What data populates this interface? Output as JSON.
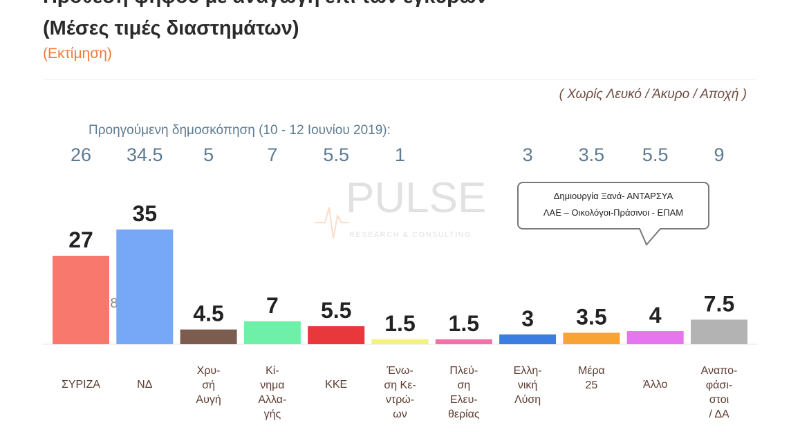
{
  "chart_data": {
    "type": "bar",
    "title": "Πρόθεση ψήφου με αναγωγή επί των εγκύρων",
    "subtitle": "(Μέσες τιμές διαστημάτων)",
    "estimate_note": "(Εκτίμηση)",
    "basis_note": "( Χωρίς Λευκό / Άκυρο / Αποχή )",
    "previous_label": "Προηγούμενη δημοσκόπηση (10 - 12 Ιουνίου 2019):",
    "previous_values": [
      26,
      34.5,
      5,
      7,
      5.5,
      1,
      null,
      3,
      3.5,
      5.5,
      9
    ],
    "categories": [
      "ΣΥΡΙΖΑ",
      "ΝΔ",
      "Χρυ-\nσή\nΑυγή",
      "Κί-\nνημα\nΑλλα-\nγής",
      "ΚΚΕ",
      "Ένω-\nση Κε-\nντρώ-\nων",
      "Πλεύ-\nση\nΕλευ-\nθερίας",
      "Ελλη-\nνική\nΛύση",
      "Μέρα\n25",
      "Άλλο",
      "Αναπο-\nφάσι-\nστοι\n/ ΔΑ"
    ],
    "values": [
      27,
      35,
      4.5,
      7,
      5.5,
      1.5,
      1.5,
      3,
      3.5,
      4,
      7.5
    ],
    "colors": [
      "#f8786e",
      "#76a8f7",
      "#7d5c50",
      "#6ef0a8",
      "#e8383c",
      "#f2f27c",
      "#f271aa",
      "#3b7de0",
      "#f8a336",
      "#e676f0",
      "#b3b3b3"
    ],
    "ylim": [
      0,
      40
    ],
    "gap_annotation": "< 8 >",
    "callout": [
      "Δημιουργία Ξανά- ΑΝΤΑΡΣΥΑ",
      "ΛΑΕ – Οικολόγοι-Πράσινοι - ΕΠΑΜ"
    ],
    "watermark": [
      "PULSE",
      "RESEARCH & CONSULTING"
    ]
  }
}
